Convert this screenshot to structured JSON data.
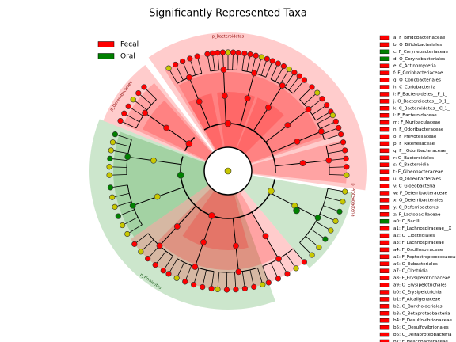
{
  "title": "Significantly Represented Taxa",
  "legend": [
    {
      "label": "Fecal",
      "color": "#ff0000"
    },
    {
      "label": "Oral",
      "color": "#008000"
    }
  ],
  "clade_labels": [
    "p_Bacteroidetes",
    "p_Deferribacteres",
    "p_Firmicutes",
    "p_Proteobacteria"
  ],
  "key": [
    {
      "label": "a: F_Bifidobacteriaceae",
      "color": "#ff0000"
    },
    {
      "label": "b: O_Bifidobacteriales",
      "color": "#ff0000"
    },
    {
      "label": "c: F_Corynebacteriaceae",
      "color": "#008000"
    },
    {
      "label": "d: O_Corynebacteriales",
      "color": "#008000"
    },
    {
      "label": "e: C_Actinomycetia",
      "color": "#ff0000"
    },
    {
      "label": "f: F_Coriobacteriaceae",
      "color": "#ff0000"
    },
    {
      "label": "g: O_Coriobacteriales",
      "color": "#ff0000"
    },
    {
      "label": "h: C_Coriobacteriia",
      "color": "#ff0000"
    },
    {
      "label": "i: F_Bacteroidetes__F_1_",
      "color": "#ff0000"
    },
    {
      "label": "j: O_Bacteroidetes__O_1_",
      "color": "#ff0000"
    },
    {
      "label": "k: C_Bacteroidetes__C_1_",
      "color": "#ff0000"
    },
    {
      "label": "l: F_Bacteroidaceae",
      "color": "#ff0000"
    },
    {
      "label": "m: F_Muribaculaceae",
      "color": "#ff0000"
    },
    {
      "label": "n: F_Odoribacteraceae",
      "color": "#ff0000"
    },
    {
      "label": "o: F_Prevotellaceae",
      "color": "#ff0000"
    },
    {
      "label": "p: F_Rikenellaceae",
      "color": "#ff0000"
    },
    {
      "label": "q: F__Odoribacteraceae_",
      "color": "#ff0000"
    },
    {
      "label": "r: O_Bacteroidales",
      "color": "#ff0000"
    },
    {
      "label": "s: C_Bacteroidia",
      "color": "#ff0000"
    },
    {
      "label": "t: F_Gloeobacteraceae",
      "color": "#ff0000"
    },
    {
      "label": "u: O_Gloeobacterales",
      "color": "#ff0000"
    },
    {
      "label": "v: C_Gloeobacteria",
      "color": "#ff0000"
    },
    {
      "label": "w: F_Deferribacteraceae",
      "color": "#ff0000"
    },
    {
      "label": "x: O_Deferribacterales",
      "color": "#ff0000"
    },
    {
      "label": "y: C_Deferribacteres",
      "color": "#ff0000"
    },
    {
      "label": "z: F_Lactobacillaceae",
      "color": "#ff0000"
    },
    {
      "label": "a0: C_Bacilli",
      "color": "#008000"
    },
    {
      "label": "a1: F_Lachnospiraceae__X",
      "color": "#ff0000"
    },
    {
      "label": "a2: O_Clostridiales",
      "color": "#ff0000"
    },
    {
      "label": "a3: F_Lachnospiraceae",
      "color": "#ff0000"
    },
    {
      "label": "a4: F_Oscillospiraceae",
      "color": "#ff0000"
    },
    {
      "label": "a5: F_Peptostreptococcaceae",
      "color": "#ff0000"
    },
    {
      "label": "a6: O_Eubacteriales",
      "color": "#ff0000"
    },
    {
      "label": "a7: C_Clostridia",
      "color": "#ff0000"
    },
    {
      "label": "a8: F_Erysipelotrichaceae",
      "color": "#ff0000"
    },
    {
      "label": "a9: O_Erysipelotrichales",
      "color": "#ff0000"
    },
    {
      "label": "b0: C_Erysipelotrichia",
      "color": "#ff0000"
    },
    {
      "label": "b1: F_Alcaligenaceae",
      "color": "#ff0000"
    },
    {
      "label": "b2: O_Burkholderiales",
      "color": "#ff0000"
    },
    {
      "label": "b3: C_Betaproteobacteria",
      "color": "#ff0000"
    },
    {
      "label": "b4: F_Desulfovibrionaceae",
      "color": "#ff0000"
    },
    {
      "label": "b5: O_Desulfovibrionales",
      "color": "#ff0000"
    },
    {
      "label": "b6: C_Deltaproteobacteria",
      "color": "#ff0000"
    },
    {
      "label": "b7: F_Helicobacteraceae",
      "color": "#ff0000"
    }
  ]
}
